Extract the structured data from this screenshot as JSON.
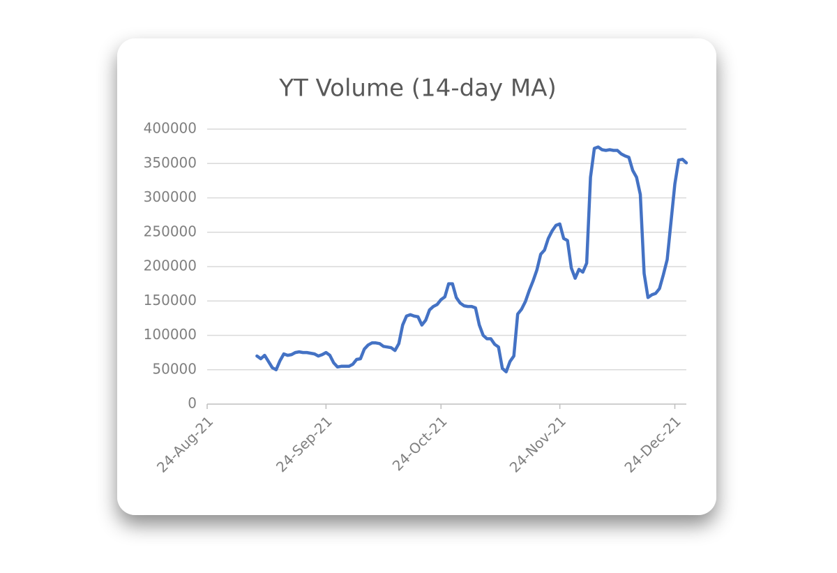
{
  "chart_data": {
    "type": "line",
    "title": "YT Volume (14-day MA)",
    "color": "#4472c4",
    "grid": true,
    "x": [
      "2021-09-06",
      "2021-09-07",
      "2021-09-08",
      "2021-09-09",
      "2021-09-10",
      "2021-09-11",
      "2021-09-12",
      "2021-09-13",
      "2021-09-14",
      "2021-09-15",
      "2021-09-16",
      "2021-09-17",
      "2021-09-18",
      "2021-09-19",
      "2021-09-20",
      "2021-09-21",
      "2021-09-22",
      "2021-09-23",
      "2021-09-24",
      "2021-09-25",
      "2021-09-26",
      "2021-09-27",
      "2021-09-28",
      "2021-09-29",
      "2021-09-30",
      "2021-10-01",
      "2021-10-02",
      "2021-10-03",
      "2021-10-04",
      "2021-10-05",
      "2021-10-06",
      "2021-10-07",
      "2021-10-08",
      "2021-10-09",
      "2021-10-10",
      "2021-10-11",
      "2021-10-12",
      "2021-10-13",
      "2021-10-14",
      "2021-10-15",
      "2021-10-16",
      "2021-10-17",
      "2021-10-18",
      "2021-10-19",
      "2021-10-20",
      "2021-10-21",
      "2021-10-22",
      "2021-10-23",
      "2021-10-24",
      "2021-10-25",
      "2021-10-26",
      "2021-10-27",
      "2021-10-28",
      "2021-10-29",
      "2021-10-30",
      "2021-10-31",
      "2021-11-01",
      "2021-11-02",
      "2021-11-03",
      "2021-11-04",
      "2021-11-05",
      "2021-11-06",
      "2021-11-07",
      "2021-11-08",
      "2021-11-09",
      "2021-11-10",
      "2021-11-11",
      "2021-11-12",
      "2021-11-13",
      "2021-11-14",
      "2021-11-15",
      "2021-11-16",
      "2021-11-17",
      "2021-11-18",
      "2021-11-19",
      "2021-11-20",
      "2021-11-21",
      "2021-11-22",
      "2021-11-23",
      "2021-11-24",
      "2021-11-25",
      "2021-11-26",
      "2021-11-27",
      "2021-11-28",
      "2021-11-29",
      "2021-11-30",
      "2021-12-01",
      "2021-12-02",
      "2021-12-03",
      "2021-12-04",
      "2021-12-05",
      "2021-12-06",
      "2021-12-07",
      "2021-12-08",
      "2021-12-09",
      "2021-12-10",
      "2021-12-11",
      "2021-12-12",
      "2021-12-13",
      "2021-12-14",
      "2021-12-15",
      "2021-12-16",
      "2021-12-17",
      "2021-12-18",
      "2021-12-19",
      "2021-12-20",
      "2021-12-21",
      "2021-12-22",
      "2021-12-23",
      "2021-12-24",
      "2021-12-25",
      "2021-12-26",
      "2021-12-27"
    ],
    "values": [
      70000,
      66000,
      71000,
      62000,
      53000,
      50000,
      63000,
      73000,
      71000,
      72000,
      75000,
      76000,
      75000,
      75000,
      74000,
      73000,
      70000,
      72000,
      75000,
      71000,
      60000,
      54000,
      55000,
      55000,
      55000,
      58000,
      65000,
      66000,
      80000,
      86000,
      89000,
      89000,
      88000,
      84000,
      83000,
      82000,
      78000,
      88000,
      115000,
      128000,
      130000,
      128000,
      127000,
      115000,
      122000,
      137000,
      142000,
      145000,
      152000,
      156000,
      175000,
      175000,
      155000,
      147000,
      143000,
      142000,
      142000,
      140000,
      115000,
      100000,
      95000,
      95000,
      87000,
      83000,
      52000,
      47000,
      62000,
      70000,
      131000,
      138000,
      149000,
      165000,
      179000,
      195000,
      218000,
      224000,
      241000,
      252000,
      260000,
      262000,
      241000,
      238000,
      198000,
      183000,
      196000,
      192000,
      205000,
      330000,
      372000,
      374000,
      370000,
      369000,
      370000,
      369000,
      369000,
      364000,
      361000,
      359000,
      340000,
      330000,
      305000,
      190000,
      155000,
      159000,
      161000,
      168000,
      188000,
      210000,
      265000,
      320000,
      355000,
      356000,
      351000
    ],
    "xlim": [
      "2021-08-24",
      "2021-12-27"
    ],
    "xticks": [
      {
        "value": "2021-08-24",
        "label": "24-Aug-21"
      },
      {
        "value": "2021-09-24",
        "label": "24-Sep-21"
      },
      {
        "value": "2021-10-24",
        "label": "24-Oct-21"
      },
      {
        "value": "2021-11-24",
        "label": "24-Nov-21"
      },
      {
        "value": "2021-12-24",
        "label": "24-Dec-21"
      }
    ],
    "ylim": [
      0,
      400000
    ],
    "yticks": [
      0,
      50000,
      100000,
      150000,
      200000,
      250000,
      300000,
      350000,
      400000
    ]
  }
}
